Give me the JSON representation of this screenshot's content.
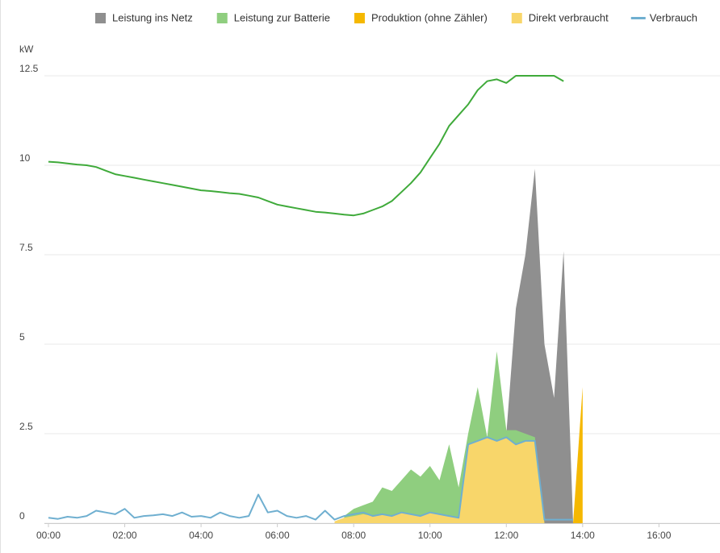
{
  "chart_data": {
    "type": "area",
    "y_unit": "kW",
    "x": [
      0,
      0.25,
      0.5,
      0.75,
      1,
      1.25,
      1.5,
      1.75,
      2,
      2.25,
      2.5,
      2.75,
      3,
      3.25,
      3.5,
      3.75,
      4,
      4.25,
      4.5,
      4.75,
      5,
      5.25,
      5.5,
      5.75,
      6,
      6.25,
      6.5,
      6.75,
      7,
      7.25,
      7.5,
      7.75,
      8,
      8.25,
      8.5,
      8.75,
      9,
      9.25,
      9.5,
      9.75,
      10,
      10.25,
      10.5,
      10.75,
      11,
      11.25,
      11.5,
      11.75,
      12,
      12.25,
      12.5,
      12.75,
      13,
      13.25,
      13.5,
      13.75,
      14
    ],
    "xlim": [
      0,
      17.6
    ],
    "xticks": [
      {
        "value": 0,
        "label": "00:00"
      },
      {
        "value": 2,
        "label": "02:00"
      },
      {
        "value": 4,
        "label": "04:00"
      },
      {
        "value": 6,
        "label": "06:00"
      },
      {
        "value": 8,
        "label": "08:00"
      },
      {
        "value": 10,
        "label": "10:00"
      },
      {
        "value": 12,
        "label": "12:00"
      },
      {
        "value": 14,
        "label": "14:00"
      },
      {
        "value": 16,
        "label": "16:00"
      }
    ],
    "ylim": [
      0,
      12.5
    ],
    "yticks": [
      0,
      2.5,
      5,
      7.5,
      10,
      12.5
    ],
    "grid": true,
    "legend": "top",
    "series": [
      {
        "name": "Leistung ins Netz",
        "kind": "area",
        "color": "#8f8f8f",
        "values": [
          null,
          null,
          null,
          null,
          null,
          null,
          null,
          null,
          null,
          null,
          null,
          null,
          null,
          null,
          null,
          null,
          null,
          null,
          null,
          null,
          null,
          null,
          null,
          null,
          null,
          null,
          null,
          null,
          null,
          null,
          null,
          null,
          null,
          null,
          null,
          null,
          null,
          null,
          null,
          null,
          null,
          null,
          null,
          null,
          null,
          null,
          null,
          null,
          2.5,
          6.0,
          7.5,
          9.9,
          5.0,
          3.5,
          7.6,
          0,
          null
        ]
      },
      {
        "name": "Leistung zur Batterie",
        "kind": "area",
        "color": "#8fce7f",
        "values": [
          null,
          null,
          null,
          null,
          null,
          null,
          null,
          null,
          null,
          null,
          null,
          null,
          null,
          null,
          null,
          null,
          null,
          null,
          null,
          null,
          null,
          null,
          null,
          null,
          null,
          null,
          null,
          null,
          null,
          null,
          null,
          0.2,
          0.4,
          0.5,
          0.6,
          1.0,
          0.9,
          1.2,
          1.5,
          1.3,
          1.6,
          1.2,
          2.2,
          1.0,
          2.5,
          3.8,
          2.4,
          4.8,
          2.6,
          2.6,
          2.5,
          2.4,
          0,
          null,
          null,
          null,
          null
        ]
      },
      {
        "name": "Produktion (ohne Zähler)",
        "kind": "area",
        "color": "#f5b800",
        "values": [
          null,
          null,
          null,
          null,
          null,
          null,
          null,
          null,
          null,
          null,
          null,
          null,
          null,
          null,
          null,
          null,
          null,
          null,
          null,
          null,
          null,
          null,
          null,
          null,
          null,
          null,
          null,
          null,
          null,
          null,
          null,
          null,
          null,
          null,
          null,
          null,
          null,
          null,
          null,
          null,
          null,
          null,
          null,
          null,
          null,
          null,
          null,
          null,
          null,
          null,
          null,
          null,
          null,
          null,
          null,
          0,
          3.8
        ]
      },
      {
        "name": "Direkt verbraucht",
        "kind": "area",
        "color": "#f8d66a",
        "values": [
          null,
          null,
          null,
          null,
          null,
          null,
          null,
          null,
          null,
          null,
          null,
          null,
          null,
          null,
          null,
          null,
          null,
          null,
          null,
          null,
          null,
          null,
          null,
          null,
          null,
          null,
          null,
          null,
          null,
          null,
          0.05,
          0.15,
          0.2,
          0.25,
          0.2,
          0.25,
          0.2,
          0.3,
          0.25,
          0.2,
          0.3,
          0.25,
          0.2,
          0.15,
          2.2,
          2.3,
          2.4,
          2.3,
          2.4,
          2.2,
          2.3,
          2.3,
          0,
          null,
          null,
          null,
          null
        ]
      },
      {
        "name": "Verbrauch",
        "kind": "line",
        "color": "#6fafd0",
        "values": [
          0.15,
          0.12,
          0.18,
          0.15,
          0.2,
          0.35,
          0.3,
          0.25,
          0.4,
          0.15,
          0.2,
          0.22,
          0.25,
          0.2,
          0.3,
          0.18,
          0.2,
          0.15,
          0.3,
          0.2,
          0.15,
          0.2,
          0.8,
          0.3,
          0.35,
          0.2,
          0.15,
          0.2,
          0.1,
          0.35,
          0.1,
          0.2,
          0.25,
          0.3,
          0.2,
          0.25,
          0.2,
          0.3,
          0.25,
          0.2,
          0.3,
          0.25,
          0.2,
          0.15,
          2.2,
          2.3,
          2.4,
          2.3,
          2.4,
          2.2,
          2.3,
          2.3,
          0.1,
          0.1,
          0.1,
          0.1,
          null
        ]
      },
      {
        "kind": "line",
        "color": "#3faa3a",
        "values": [
          10.1,
          10.08,
          10.05,
          10.02,
          10.0,
          9.95,
          9.85,
          9.75,
          9.7,
          9.65,
          9.6,
          9.55,
          9.5,
          9.45,
          9.4,
          9.35,
          9.3,
          9.28,
          9.25,
          9.22,
          9.2,
          9.15,
          9.1,
          9.0,
          8.9,
          8.85,
          8.8,
          8.75,
          8.7,
          8.68,
          8.65,
          8.62,
          8.6,
          8.65,
          8.75,
          8.85,
          9.0,
          9.25,
          9.5,
          9.8,
          10.2,
          10.6,
          11.1,
          11.4,
          11.7,
          12.1,
          12.35,
          12.4,
          12.3,
          12.5,
          12.5,
          12.5,
          12.5,
          12.5,
          12.35,
          null,
          null
        ]
      }
    ]
  }
}
